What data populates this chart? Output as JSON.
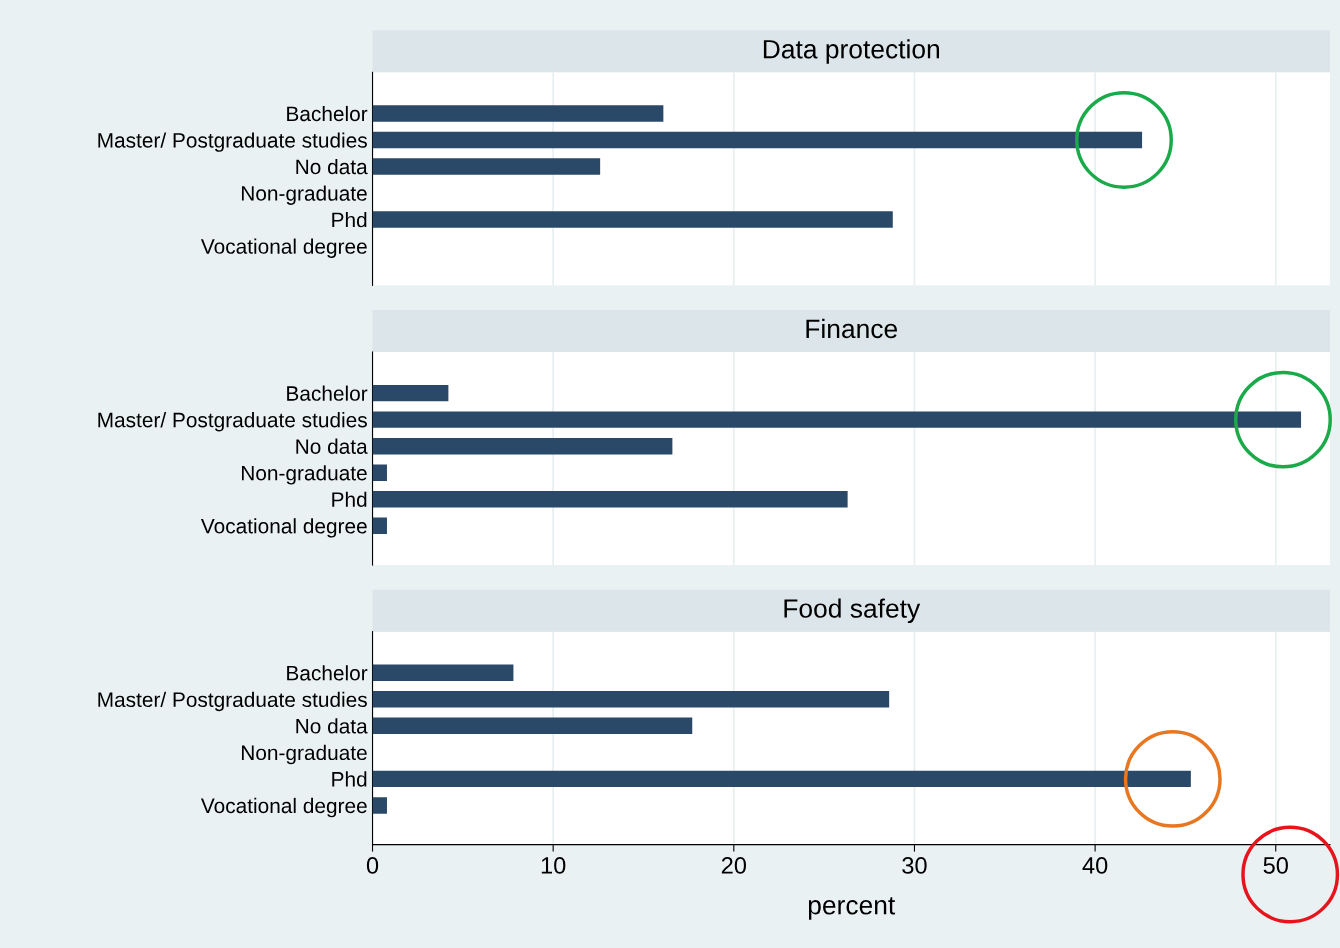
{
  "chart_data": [
    {
      "type": "bar",
      "orientation": "horizontal",
      "title": "Data protection",
      "categories": [
        "Bachelor",
        "Master/ Postgraduate studies",
        "No data",
        "Non-graduate",
        "Phd",
        "Vocational degree"
      ],
      "values": [
        16.1,
        42.6,
        12.6,
        0,
        28.8,
        0
      ],
      "color": "#2a4868",
      "xlim": [
        0,
        53
      ],
      "xticks": [
        0,
        10,
        20,
        30,
        40,
        50
      ],
      "grid": "x",
      "tick_labels": "y"
    },
    {
      "type": "bar",
      "orientation": "horizontal",
      "title": "Finance",
      "categories": [
        "Bachelor",
        "Master/ Postgraduate studies",
        "No data",
        "Non-graduate",
        "Phd",
        "Vocational degree"
      ],
      "values": [
        4.2,
        51.4,
        16.6,
        0.8,
        26.3,
        0.8
      ],
      "color": "#2a4868",
      "xlim": [
        0,
        53
      ],
      "xticks": [
        0,
        10,
        20,
        30,
        40,
        50
      ],
      "grid": "x",
      "tick_labels": "y"
    },
    {
      "type": "bar",
      "orientation": "horizontal",
      "title": "Food safety",
      "xlabel": "percent",
      "categories": [
        "Bachelor",
        "Master/ Postgraduate studies",
        "No data",
        "Non-graduate",
        "Phd",
        "Vocational degree"
      ],
      "values": [
        7.8,
        28.6,
        17.7,
        0,
        45.3,
        0.8
      ],
      "color": "#2a4868",
      "xlim": [
        0,
        53
      ],
      "xticks": [
        0,
        10,
        20,
        30,
        40,
        50
      ],
      "grid": "x"
    }
  ]
}
